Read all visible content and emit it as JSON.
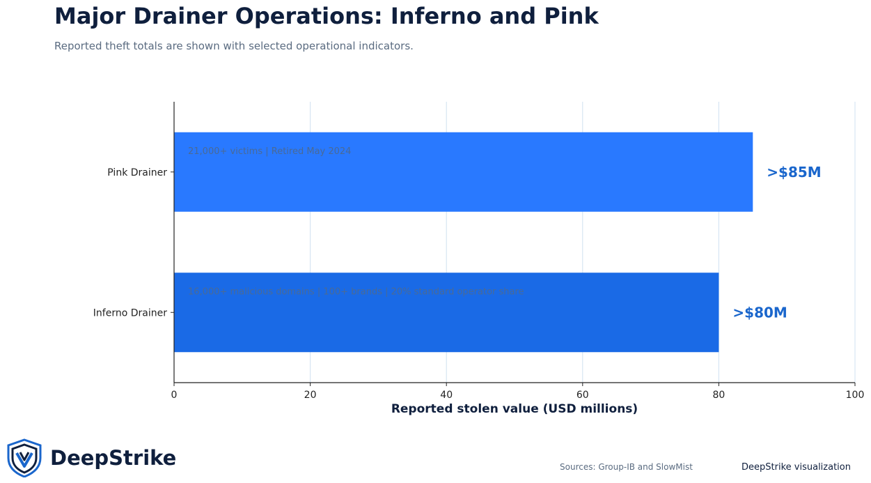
{
  "header": {
    "title": "Major Drainer Operations: Inferno and Pink",
    "subtitle": "Reported theft totals are shown with selected operational indicators."
  },
  "chart_data": {
    "type": "bar",
    "orientation": "horizontal",
    "categories": [
      "Pink Drainer",
      "Inferno Drainer"
    ],
    "values": [
      85,
      80
    ],
    "value_labels": [
      ">$85M",
      ">$80M"
    ],
    "annotations": [
      "21,000+ victims | Retired May 2024",
      "16,000+ malicious domains | 100+ brands | 20% standard operator share"
    ],
    "bar_colors": [
      "#2979ff",
      "#1a6ae6"
    ],
    "xlabel": "Reported stolen value (USD millions)",
    "xlim": [
      0,
      100
    ],
    "xticks": [
      "0",
      "20",
      "40",
      "60",
      "80",
      "100"
    ],
    "grid": true
  },
  "footer": {
    "brand": "DeepStrike",
    "sources": "Sources: Group-IB and SlowMist",
    "credit": "DeepStrike visualization"
  },
  "colors": {
    "title": "#0f1f3d",
    "value_label": "#1a66cc",
    "gridline": "#cfe0f0",
    "annotation": "#4a6a96"
  }
}
